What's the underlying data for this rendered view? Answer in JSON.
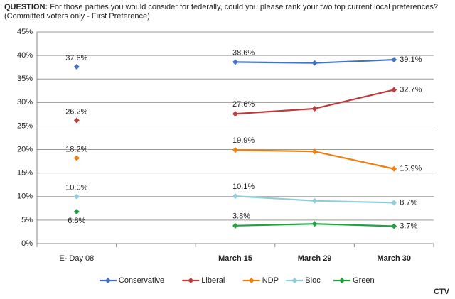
{
  "chart_data": {
    "type": "line",
    "question_label": "QUESTION:",
    "title": "For those parties you would consider for federally, could you please rank your two top current local preferences?",
    "subtitle": "(Committed voters only - First Preference)",
    "source": "CTV",
    "categories": [
      "E- Day 08",
      null,
      "March 15",
      "March 29",
      "March  30"
    ],
    "series": [
      {
        "name": "Conservative",
        "color": "#4472c4",
        "values": [
          37.6,
          null,
          38.6,
          38.4,
          39.1
        ],
        "value_labels": [
          "37.6%",
          null,
          "38.6%",
          null,
          "39.1%"
        ]
      },
      {
        "name": "Liberal",
        "color": "#c0393b",
        "values": [
          26.2,
          null,
          27.6,
          28.7,
          32.7
        ],
        "value_labels": [
          "26.2%",
          null,
          "27.6%",
          null,
          "32.7%"
        ]
      },
      {
        "name": "NDP",
        "color": "#f07d0c",
        "values": [
          18.2,
          null,
          19.9,
          19.6,
          15.9
        ],
        "value_labels": [
          "18.2%",
          null,
          "19.9%",
          null,
          "15.9%"
        ]
      },
      {
        "name": "Bloc",
        "color": "#92cddd",
        "values": [
          10.0,
          null,
          10.1,
          9.1,
          8.7
        ],
        "value_labels": [
          "10.0%",
          null,
          "10.1%",
          null,
          "8.7%"
        ]
      },
      {
        "name": "Green",
        "color": "#1fa244",
        "values": [
          6.8,
          null,
          3.8,
          4.2,
          3.7
        ],
        "value_labels": [
          "6.8%",
          null,
          "3.8%",
          null,
          "3.7%"
        ]
      }
    ],
    "ylim": [
      0,
      45
    ],
    "yticks": [
      {
        "value": 0,
        "label": "0%"
      },
      {
        "value": 5,
        "label": "5%"
      },
      {
        "value": 10,
        "label": "10%"
      },
      {
        "value": 15,
        "label": "15%"
      },
      {
        "value": 20,
        "label": "20%"
      },
      {
        "value": 25,
        "label": "25%"
      },
      {
        "value": 30,
        "label": "30%"
      },
      {
        "value": 35,
        "label": "35%"
      },
      {
        "value": 40,
        "label": "40%"
      },
      {
        "value": 45,
        "label": "45%"
      }
    ],
    "grid": true,
    "legend": "bottom"
  }
}
